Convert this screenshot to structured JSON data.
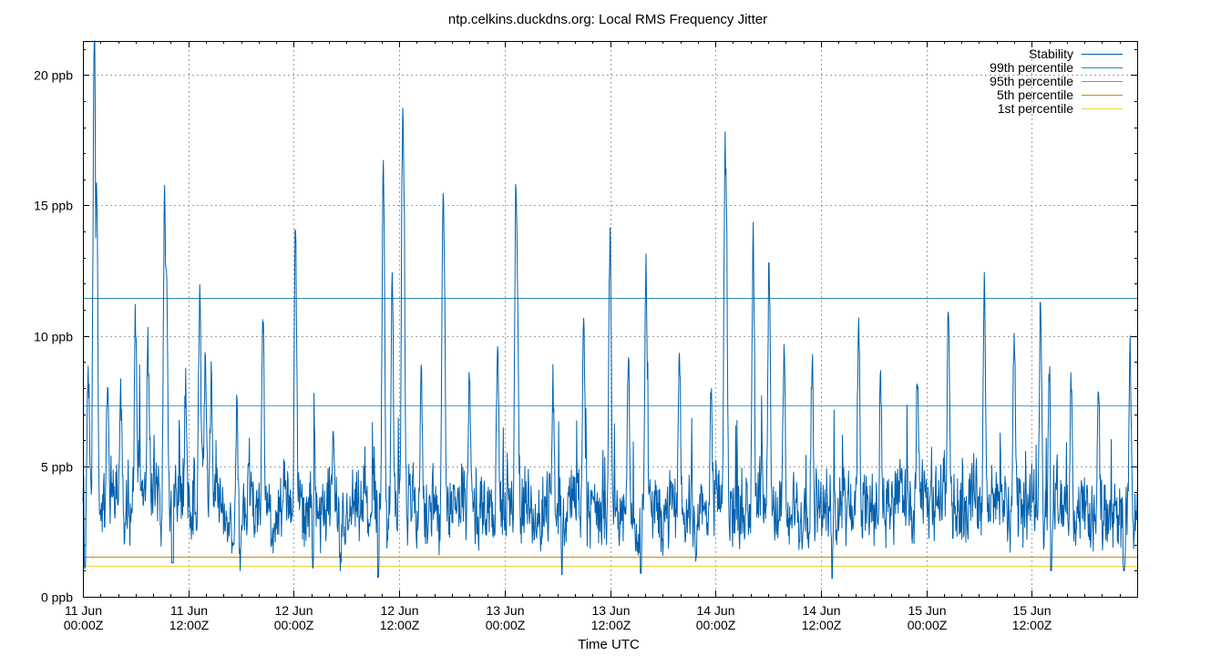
{
  "chart_data": {
    "type": "line",
    "title": "ntp.celkins.duckdns.org: Local RMS Frequency Jitter",
    "xlabel": "Time UTC",
    "ylabel": "",
    "ylim": [
      0,
      21.3
    ],
    "xlim_hours": [
      0,
      120
    ],
    "grid": true,
    "legend_position": "top-right",
    "y_ticks": [
      {
        "value": 0,
        "label": "0 ppb"
      },
      {
        "value": 5,
        "label": "5 ppb"
      },
      {
        "value": 10,
        "label": "10 ppb"
      },
      {
        "value": 15,
        "label": "15 ppb"
      },
      {
        "value": 20,
        "label": "20 ppb"
      }
    ],
    "x_ticks": [
      {
        "hour": 0,
        "line1": "11 Jun",
        "line2": "00:00Z"
      },
      {
        "hour": 12,
        "line1": "11 Jun",
        "line2": "12:00Z"
      },
      {
        "hour": 24,
        "line1": "12 Jun",
        "line2": "00:00Z"
      },
      {
        "hour": 36,
        "line1": "12 Jun",
        "line2": "12:00Z"
      },
      {
        "hour": 48,
        "line1": "13 Jun",
        "line2": "00:00Z"
      },
      {
        "hour": 60,
        "line1": "13 Jun",
        "line2": "12:00Z"
      },
      {
        "hour": 72,
        "line1": "14 Jun",
        "line2": "00:00Z"
      },
      {
        "hour": 84,
        "line1": "14 Jun",
        "line2": "12:00Z"
      },
      {
        "hour": 96,
        "line1": "15 Jun",
        "line2": "00:00Z"
      },
      {
        "hour": 108,
        "line1": "15 Jun",
        "line2": "12:00Z"
      }
    ],
    "reference_lines": [
      {
        "name": "99th percentile",
        "value": 11.45,
        "color": "#2a8fa6"
      },
      {
        "name": "95th percentile",
        "value": 7.35,
        "color": "#4aa8c8"
      },
      {
        "name": "5th percentile",
        "value": 1.55,
        "color": "#d08a00"
      },
      {
        "name": "1st percentile",
        "value": 1.2,
        "color": "#f0d040"
      }
    ],
    "series": [
      {
        "name": "Stability",
        "color": "#0060ad",
        "baseline": [
          3.5,
          4.2,
          3.0,
          3.8,
          4.5,
          3.2,
          4.0,
          3.6,
          4.8,
          3.4,
          3.0,
          4.4,
          3.8,
          3.2,
          4.1,
          3.5,
          3.0,
          2.8,
          3.6,
          4.2,
          3.4,
          3.0,
          2.9,
          3.7,
          3.3,
          3.0,
          3.5,
          3.2,
          3.8,
          3.0,
          2.8,
          3.4,
          3.0,
          3.6,
          3.1,
          2.9,
          3.5,
          4.0,
          3.2,
          3.0,
          3.3,
          2.7,
          3.4,
          3.8,
          3.2,
          3.0,
          3.6,
          3.1,
          3.4,
          3.0,
          3.5,
          3.2,
          2.9,
          3.6,
          3.3,
          3.0,
          3.7,
          3.2,
          3.4,
          3.1,
          2.8,
          3.3,
          3.0,
          2.6,
          3.2,
          3.5,
          2.9,
          3.4,
          3.0,
          3.6,
          3.2,
          3.0,
          3.5,
          3.8,
          3.1,
          3.4,
          3.2,
          3.6,
          4.0,
          3.3,
          3.0,
          3.4,
          3.1,
          3.6,
          3.2,
          2.9,
          3.5,
          3.8,
          3.2,
          3.4,
          3.0,
          3.6,
          3.3,
          3.9,
          3.4,
          3.2,
          3.7,
          3.5,
          3.9,
          3.3,
          3.6,
          4.0,
          3.4,
          3.2,
          3.8,
          3.5,
          3.1,
          3.4,
          3.7,
          3.2,
          3.5,
          3.9,
          3.3,
          3.0,
          3.6,
          3.2,
          3.4,
          3.0,
          3.3,
          3.5,
          3.0
        ],
        "peaks": [
          {
            "hour": 0.6,
            "value": 8.0
          },
          {
            "hour": 1.3,
            "value": 21.3
          },
          {
            "hour": 1.55,
            "value": 15.3
          },
          {
            "hour": 2.8,
            "value": 7.6
          },
          {
            "hour": 4.3,
            "value": 6.8
          },
          {
            "hour": 6.0,
            "value": 9.7
          },
          {
            "hour": 7.4,
            "value": 8.4
          },
          {
            "hour": 9.3,
            "value": 14.5
          },
          {
            "hour": 9.5,
            "value": 11.9
          },
          {
            "hour": 10.2,
            "value": 6.2
          },
          {
            "hour": 11.7,
            "value": 7.0
          },
          {
            "hour": 13.3,
            "value": 10.8
          },
          {
            "hour": 13.9,
            "value": 7.8
          },
          {
            "hour": 14.6,
            "value": 7.4
          },
          {
            "hour": 17.5,
            "value": 6.3
          },
          {
            "hour": 20.5,
            "value": 10.1
          },
          {
            "hour": 24.2,
            "value": 13.1
          },
          {
            "hour": 26.3,
            "value": 6.3
          },
          {
            "hour": 28.5,
            "value": 5.4
          },
          {
            "hour": 34.2,
            "value": 15.7
          },
          {
            "hour": 35.2,
            "value": 11.2
          },
          {
            "hour": 36.4,
            "value": 17.5
          },
          {
            "hour": 36.5,
            "value": 15.7
          },
          {
            "hour": 38.5,
            "value": 7.6
          },
          {
            "hour": 41.0,
            "value": 14.5
          },
          {
            "hour": 41.1,
            "value": 12.4
          },
          {
            "hour": 44.0,
            "value": 8.0
          },
          {
            "hour": 47.2,
            "value": 9.3
          },
          {
            "hour": 49.3,
            "value": 15.6
          },
          {
            "hour": 49.4,
            "value": 12.6
          },
          {
            "hour": 53.5,
            "value": 7.4
          },
          {
            "hour": 57.0,
            "value": 9.6
          },
          {
            "hour": 60.0,
            "value": 13.0
          },
          {
            "hour": 62.1,
            "value": 8.2
          },
          {
            "hour": 64.1,
            "value": 11.9
          },
          {
            "hour": 67.9,
            "value": 8.8
          },
          {
            "hour": 71.5,
            "value": 7.2
          },
          {
            "hour": 73.1,
            "value": 16.1
          },
          {
            "hour": 73.2,
            "value": 15.0
          },
          {
            "hour": 76.3,
            "value": 12.8
          },
          {
            "hour": 78.1,
            "value": 11.4
          },
          {
            "hour": 79.8,
            "value": 8.4
          },
          {
            "hour": 83.0,
            "value": 8.2
          },
          {
            "hour": 88.3,
            "value": 9.8
          },
          {
            "hour": 90.8,
            "value": 7.3
          },
          {
            "hour": 95.0,
            "value": 7.9
          },
          {
            "hour": 98.5,
            "value": 9.8
          },
          {
            "hour": 102.6,
            "value": 11.0
          },
          {
            "hour": 106.0,
            "value": 9.5
          },
          {
            "hour": 109.0,
            "value": 10.3
          },
          {
            "hour": 110.0,
            "value": 8.2
          },
          {
            "hour": 112.5,
            "value": 7.5
          },
          {
            "hour": 115.6,
            "value": 6.9
          },
          {
            "hour": 119.2,
            "value": 8.5
          }
        ],
        "dips": [
          {
            "hour": 0.2,
            "value": 1.1
          },
          {
            "hour": 10.2,
            "value": 1.3
          },
          {
            "hour": 17.9,
            "value": 1.0
          },
          {
            "hour": 26.2,
            "value": 1.1
          },
          {
            "hour": 29.3,
            "value": 1.0
          },
          {
            "hour": 33.6,
            "value": 0.75
          },
          {
            "hour": 54.5,
            "value": 0.85
          },
          {
            "hour": 63.5,
            "value": 0.9
          },
          {
            "hour": 85.3,
            "value": 0.7
          },
          {
            "hour": 110.2,
            "value": 1.0
          },
          {
            "hour": 118.5,
            "value": 1.0
          }
        ]
      }
    ]
  }
}
